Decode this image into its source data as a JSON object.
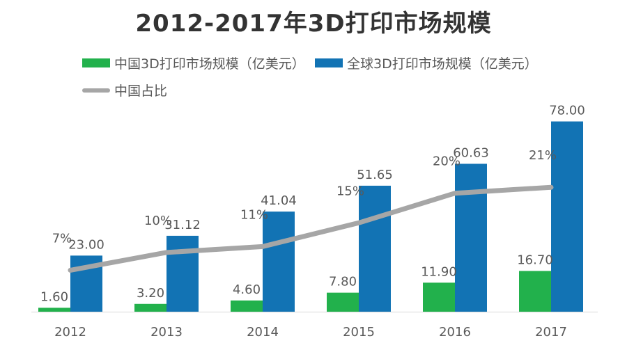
{
  "chart_data": {
    "type": "bar",
    "title": "2012-2017年3D打印市场规模",
    "categories": [
      "2012",
      "2013",
      "2014",
      "2015",
      "2016",
      "2017"
    ],
    "series": [
      {
        "name": "中国3D打印市场规模（亿美元）",
        "type": "bar",
        "color": "#22b14c",
        "values": [
          1.6,
          3.2,
          4.6,
          7.8,
          11.9,
          16.7
        ],
        "labels": [
          "1.60",
          "3.20",
          "4.60",
          "7.80",
          "11.90",
          "16.70"
        ]
      },
      {
        "name": "全球3D打印市场规模（亿美元）",
        "type": "bar",
        "color": "#1273b4",
        "values": [
          23.0,
          31.12,
          41.04,
          51.65,
          60.63,
          78.0
        ],
        "labels": [
          "23.00",
          "31.12",
          "41.04",
          "51.65",
          "60.63",
          "78.00"
        ]
      },
      {
        "name": "中国占比",
        "type": "line",
        "color": "#a6a6a6",
        "values": [
          7,
          10,
          11,
          15,
          20,
          21
        ],
        "labels": [
          "7%",
          "10%",
          "11%",
          "15%",
          "20%",
          "21%"
        ]
      }
    ],
    "ylim": [
      0,
      85
    ],
    "ylim_secondary": [
      0,
      35
    ],
    "grid": false,
    "legend": "top-left"
  }
}
